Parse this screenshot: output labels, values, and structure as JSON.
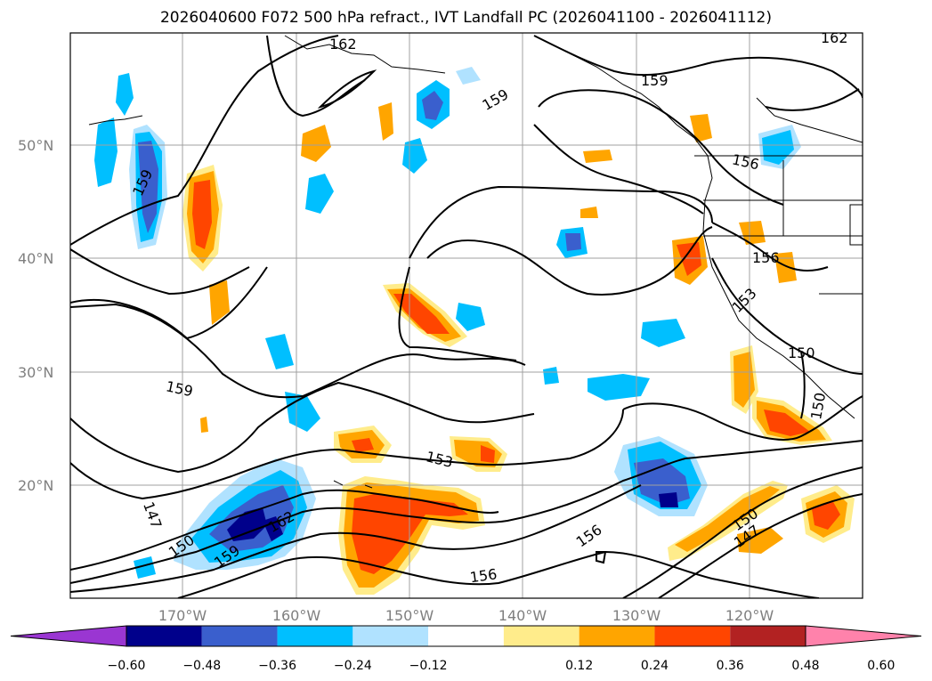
{
  "title": "2026040600 F072 500 hPa refract., IVT Landfall PC (2026041100 - 2026041112)",
  "map": {
    "lat_labels": [
      "50°N",
      "40°N",
      "30°N",
      "20°N"
    ],
    "lon_labels": [
      "170°W",
      "160°W",
      "150°W",
      "140°W",
      "130°W",
      "120°W"
    ],
    "contour_labels": [
      "162",
      "162",
      "159",
      "159",
      "159",
      "159",
      "156",
      "156",
      "153",
      "153",
      "150",
      "150",
      "150",
      "147",
      "147",
      "156",
      "156",
      "159",
      "162",
      "150"
    ]
  },
  "colorbar": {
    "ticks": [
      "−0.60",
      "−0.48",
      "−0.36",
      "−0.24",
      "−0.12",
      "0.12",
      "0.24",
      "0.36",
      "0.48",
      "0.60"
    ],
    "colors": [
      "#9a36d2",
      "#00008b",
      "#3a5fcd",
      "#00bfff",
      "#b0e2ff",
      "#ffffff",
      "#ffec8b",
      "#ffa500",
      "#ff4500",
      "#b22222",
      "#ff82ab"
    ]
  }
}
